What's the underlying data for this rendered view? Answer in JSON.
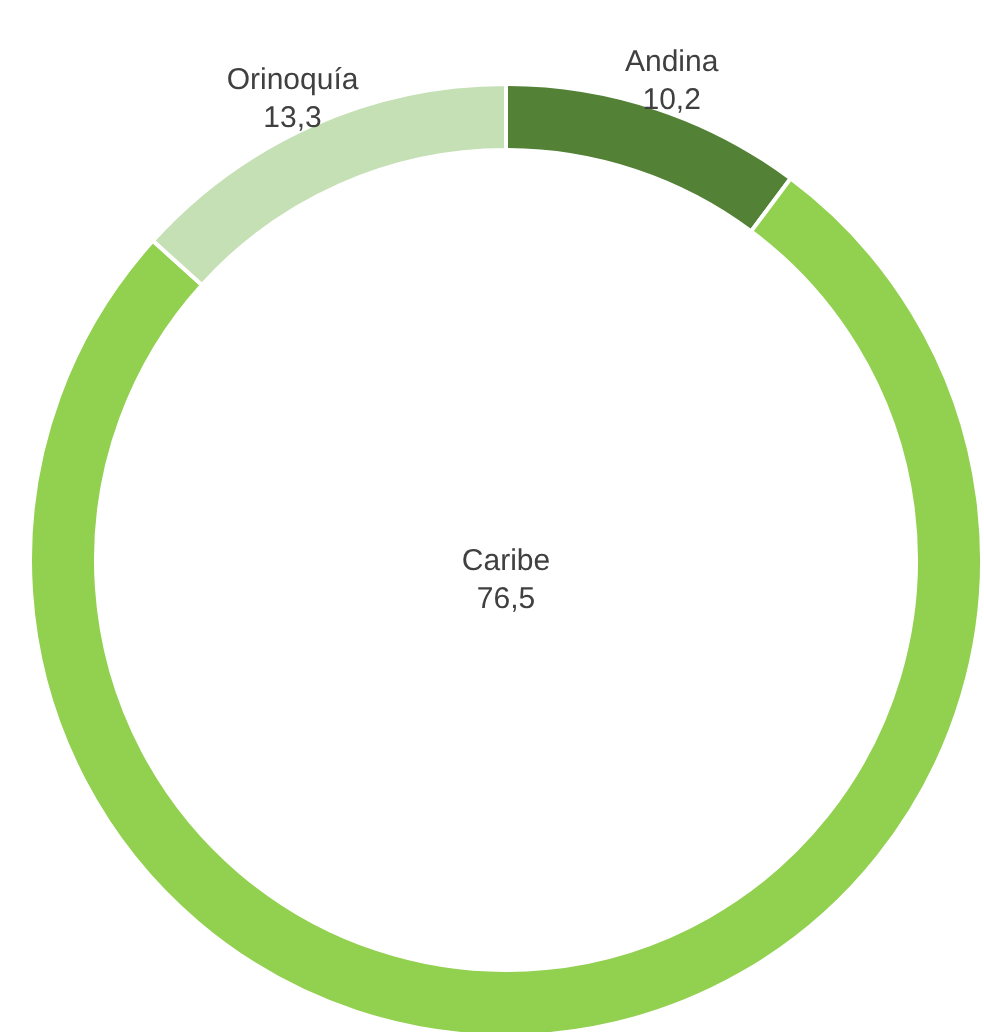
{
  "chart_data": {
    "type": "donut",
    "categories": [
      "Andina",
      "Caribe",
      "Orinoquía"
    ],
    "values": [
      10.2,
      76.5,
      13.3
    ],
    "colors": [
      "#538135",
      "#92d050",
      "#c5e0b4"
    ],
    "value_labels": [
      "10,2",
      "76,5",
      "13,3"
    ]
  }
}
